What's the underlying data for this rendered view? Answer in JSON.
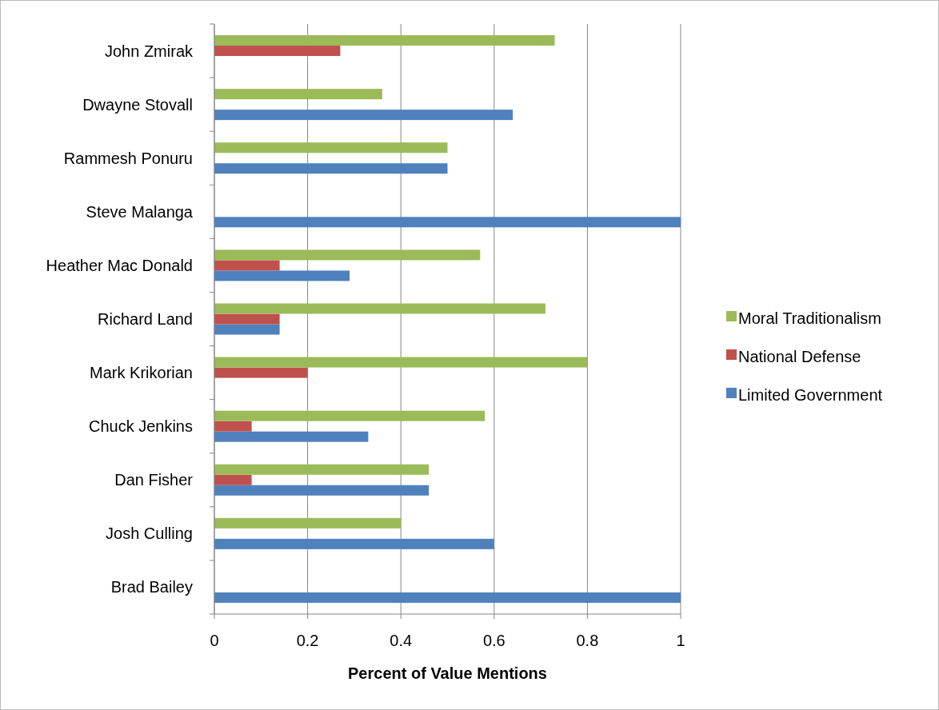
{
  "chart_data": {
    "type": "bar",
    "orientation": "horizontal",
    "xlabel": "Percent of Value Mentions",
    "categories": [
      "John Zmirak",
      "Dwayne Stovall",
      "Rammesh Ponuru",
      "Steve Malanga",
      "Heather Mac Donald",
      "Richard Land",
      "Mark Krikorian",
      "Chuck Jenkins",
      "Dan Fisher",
      "Josh Culling",
      "Brad Bailey"
    ],
    "series": [
      {
        "name": "Limited Government",
        "color": "#4f81bd",
        "values": [
          0,
          0.64,
          0.5,
          1,
          0.29,
          0.14,
          0,
          0.33,
          0.46,
          0.6,
          1
        ]
      },
      {
        "name": "National Defense",
        "color": "#c0504d",
        "values": [
          0.27,
          0,
          0,
          0,
          0.14,
          0.14,
          0.2,
          0.08,
          0.08,
          0,
          0
        ]
      },
      {
        "name": "Moral Traditionalism",
        "color": "#9bbb59",
        "values": [
          0.73,
          0.36,
          0.5,
          0,
          0.57,
          0.71,
          0.8,
          0.58,
          0.46,
          0.4,
          0
        ]
      }
    ],
    "xlim": [
      0,
      1
    ],
    "xticks": [
      0,
      0.2,
      0.4,
      0.6,
      0.8,
      1
    ],
    "grid": "x",
    "legend": "right"
  }
}
